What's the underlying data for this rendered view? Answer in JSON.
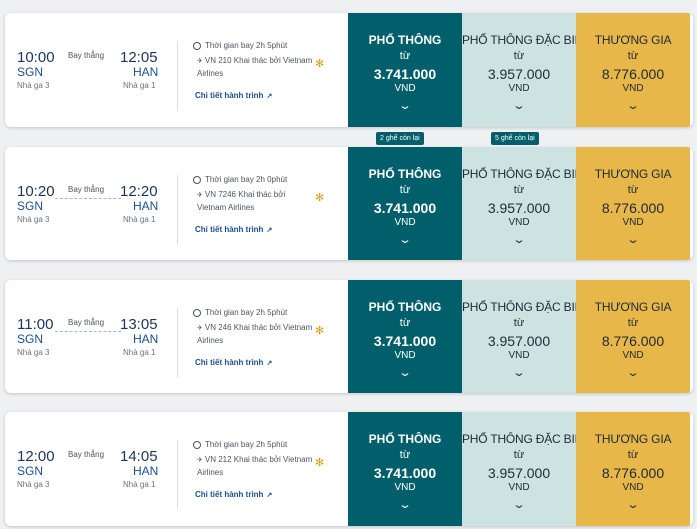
{
  "flights": [
    {
      "dep_time": "10:00",
      "dep_code": "SGN",
      "dep_terminal": "Nhà ga 3",
      "arr_time": "12:05",
      "arr_code": "HAN",
      "arr_terminal": "Nhà ga 1",
      "flight_type": "Bay thẳng",
      "duration": "Thời gian bay 2h 5phút",
      "flight_info": "VN 210 Khai thác bởi Vietnam Airlines",
      "detail_link": "Chi tiết hành trình",
      "fares": [
        {
          "name": "PHỔ THÔNG",
          "from": "từ",
          "price": "3.741.000",
          "currency": "VND"
        },
        {
          "name": "PHỔ THÔNG ĐẶC BIỆT",
          "from": "từ",
          "price": "3.957.000",
          "currency": "VND"
        },
        {
          "name": "THƯƠNG GIA",
          "from": "từ",
          "price": "8.776.000",
          "currency": "VND"
        }
      ]
    },
    {
      "dep_time": "10:20",
      "dep_code": "SGN",
      "dep_terminal": "Nhà ga 3",
      "arr_time": "12:20",
      "arr_code": "HAN",
      "arr_terminal": "Nhà ga 1",
      "flight_type": "Bay thẳng",
      "duration": "Thời gian bay 2h 0phút",
      "flight_info": "VN 7246 Khai thác bởi Vietnam Airlines",
      "detail_link": "Chi tiết hành trình",
      "fares": [
        {
          "name": "PHỔ THÔNG",
          "from": "từ",
          "price": "3.741.000",
          "currency": "VND"
        },
        {
          "name": "PHỔ THÔNG ĐẶC BIỆT",
          "from": "từ",
          "price": "3.957.000",
          "currency": "VND"
        },
        {
          "name": "THƯƠNG GIA",
          "from": "từ",
          "price": "8.776.000",
          "currency": "VND"
        }
      ]
    },
    {
      "dep_time": "11:00",
      "dep_code": "SGN",
      "dep_terminal": "Nhà ga 3",
      "arr_time": "13:05",
      "arr_code": "HAN",
      "arr_terminal": "Nhà ga 1",
      "flight_type": "Bay thẳng",
      "duration": "Thời gian bay 2h 5phút",
      "flight_info": "VN 246 Khai thác bởi Vietnam Airlines",
      "detail_link": "Chi tiết hành trình",
      "fares": [
        {
          "name": "PHỔ THÔNG",
          "from": "từ",
          "price": "3.741.000",
          "currency": "VND"
        },
        {
          "name": "PHỔ THÔNG ĐẶC BIỆT",
          "from": "từ",
          "price": "3.957.000",
          "currency": "VND"
        },
        {
          "name": "THƯƠNG GIA",
          "from": "từ",
          "price": "8.776.000",
          "currency": "VND"
        }
      ]
    },
    {
      "dep_time": "12:00",
      "dep_code": "SGN",
      "dep_terminal": "Nhà ga 3",
      "arr_time": "14:05",
      "arr_code": "HAN",
      "arr_terminal": "Nhà ga 1",
      "flight_type": "Bay thẳng",
      "duration": "Thời gian bay 2h 5phút",
      "flight_info": "VN 212 Khai thác bởi Vietnam Airlines",
      "detail_link": "Chi tiết hành trình",
      "fares": [
        {
          "name": "PHỔ THÔNG",
          "from": "từ",
          "price": "3.741.000",
          "currency": "VND"
        },
        {
          "name": "PHỔ THÔNG ĐẶC BIỆT",
          "from": "từ",
          "price": "3.957.000",
          "currency": "VND"
        },
        {
          "name": "THƯƠNG GIA",
          "from": "từ",
          "price": "8.776.000",
          "currency": "VND"
        }
      ]
    }
  ],
  "seat_badges": [
    "2 ghế còn lại",
    "5 ghế còn lại"
  ],
  "icons": {
    "clock": "clock-icon",
    "plane": "airplane-icon",
    "airline_logo": "lotus-logo-icon",
    "external": "external-link-icon",
    "chevron": "chevron-down-icon"
  },
  "colors": {
    "economy": "#005f6b",
    "premium_economy": "#cde3e1",
    "business": "#e8b74a"
  }
}
